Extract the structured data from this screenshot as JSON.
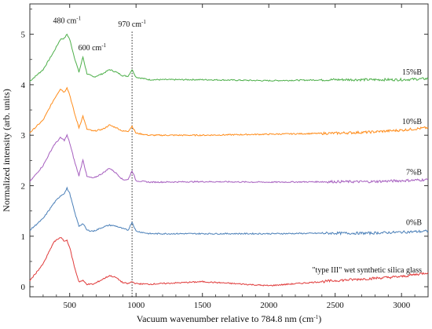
{
  "chart_data": {
    "type": "line",
    "xlabel": "Vacuum wavenumber relative to 784.8 nm (cm",
    "xlabel_sup": "-1",
    "xlabel_tail": ")",
    "ylabel": "Normalized intensity (arb. units)",
    "xlim": [
      200,
      3200
    ],
    "ylim": [
      -0.2,
      5.6
    ],
    "x_ticks": [
      500,
      1000,
      1500,
      2000,
      2500,
      3000
    ],
    "y_ticks": [
      0,
      1,
      2,
      3,
      4,
      5
    ],
    "x_tick_labels": [
      "500",
      "1000",
      "1500",
      "2000",
      "2500",
      "3000"
    ],
    "y_tick_labels": [
      "0",
      "1",
      "2",
      "3",
      "4",
      "5"
    ],
    "grid": false,
    "annotations": [
      {
        "text": "480 cm",
        "sup": "-1"
      },
      {
        "text": "600 cm",
        "sup": "-1"
      },
      {
        "text": "970 cm",
        "sup": "-1"
      }
    ],
    "reference_line_x": 970,
    "series": [
      {
        "name": "15%B",
        "color": "#4daf4a",
        "baseline": 4.0,
        "x": [
          200,
          300,
          380,
          430,
          460,
          480,
          500,
          540,
          570,
          600,
          630,
          680,
          750,
          800,
          850,
          900,
          940,
          970,
          1000,
          1100,
          1500,
          2000,
          2500,
          2750,
          3000,
          3200
        ],
        "y": [
          4.07,
          4.3,
          4.65,
          4.9,
          4.92,
          5.0,
          4.9,
          4.5,
          4.25,
          4.55,
          4.22,
          4.15,
          4.22,
          4.3,
          4.25,
          4.18,
          4.17,
          4.3,
          4.15,
          4.1,
          4.1,
          4.08,
          4.1,
          4.1,
          4.1,
          4.12
        ]
      },
      {
        "name": "10%B",
        "color": "#ff8c1a",
        "baseline": 3.0,
        "x": [
          200,
          300,
          380,
          430,
          460,
          480,
          500,
          540,
          570,
          600,
          630,
          680,
          750,
          800,
          850,
          900,
          940,
          970,
          1000,
          1100,
          1500,
          2000,
          2500,
          2750,
          3000,
          3200
        ],
        "y": [
          3.05,
          3.3,
          3.7,
          3.92,
          3.85,
          3.95,
          3.8,
          3.4,
          3.15,
          3.38,
          3.12,
          3.08,
          3.12,
          3.2,
          3.15,
          3.08,
          3.08,
          3.18,
          3.04,
          3.0,
          3.0,
          3.02,
          3.04,
          3.06,
          3.1,
          3.15
        ]
      },
      {
        "name": "7%B",
        "color": "#a65fbf",
        "baseline": 2.0,
        "x": [
          200,
          300,
          380,
          430,
          460,
          480,
          500,
          540,
          570,
          600,
          630,
          680,
          750,
          800,
          850,
          900,
          940,
          970,
          1000,
          1100,
          1500,
          2000,
          2500,
          2750,
          3000,
          3200
        ],
        "y": [
          2.08,
          2.4,
          2.8,
          2.95,
          2.9,
          3.0,
          2.85,
          2.45,
          2.2,
          2.52,
          2.18,
          2.15,
          2.25,
          2.35,
          2.25,
          2.12,
          2.12,
          2.3,
          2.1,
          2.07,
          2.08,
          2.07,
          2.08,
          2.08,
          2.1,
          2.12
        ]
      },
      {
        "name": "0%B",
        "color": "#4a7fb8",
        "baseline": 1.0,
        "x": [
          200,
          300,
          380,
          430,
          460,
          480,
          500,
          540,
          570,
          600,
          630,
          680,
          750,
          800,
          850,
          900,
          940,
          970,
          1000,
          1100,
          1500,
          2000,
          2500,
          2750,
          3000,
          3200
        ],
        "y": [
          1.12,
          1.35,
          1.65,
          1.8,
          1.85,
          1.95,
          1.85,
          1.45,
          1.2,
          1.25,
          1.12,
          1.1,
          1.18,
          1.22,
          1.2,
          1.15,
          1.12,
          1.28,
          1.1,
          1.05,
          1.05,
          1.05,
          1.06,
          1.06,
          1.08,
          1.1
        ]
      },
      {
        "name": "\"type III\" wet synthetic silica glass",
        "color": "#e03a3a",
        "baseline": 0.0,
        "x": [
          200,
          300,
          380,
          430,
          460,
          480,
          500,
          540,
          570,
          600,
          630,
          680,
          750,
          800,
          850,
          900,
          940,
          970,
          1000,
          1100,
          1500,
          2000,
          2500,
          2750,
          3000,
          3200
        ],
        "y": [
          0.12,
          0.45,
          0.88,
          0.98,
          0.9,
          0.92,
          0.78,
          0.35,
          0.1,
          0.12,
          0.05,
          0.05,
          0.15,
          0.22,
          0.18,
          0.08,
          0.06,
          0.1,
          0.06,
          0.05,
          0.1,
          0.02,
          0.12,
          0.16,
          0.2,
          0.28
        ]
      }
    ]
  }
}
